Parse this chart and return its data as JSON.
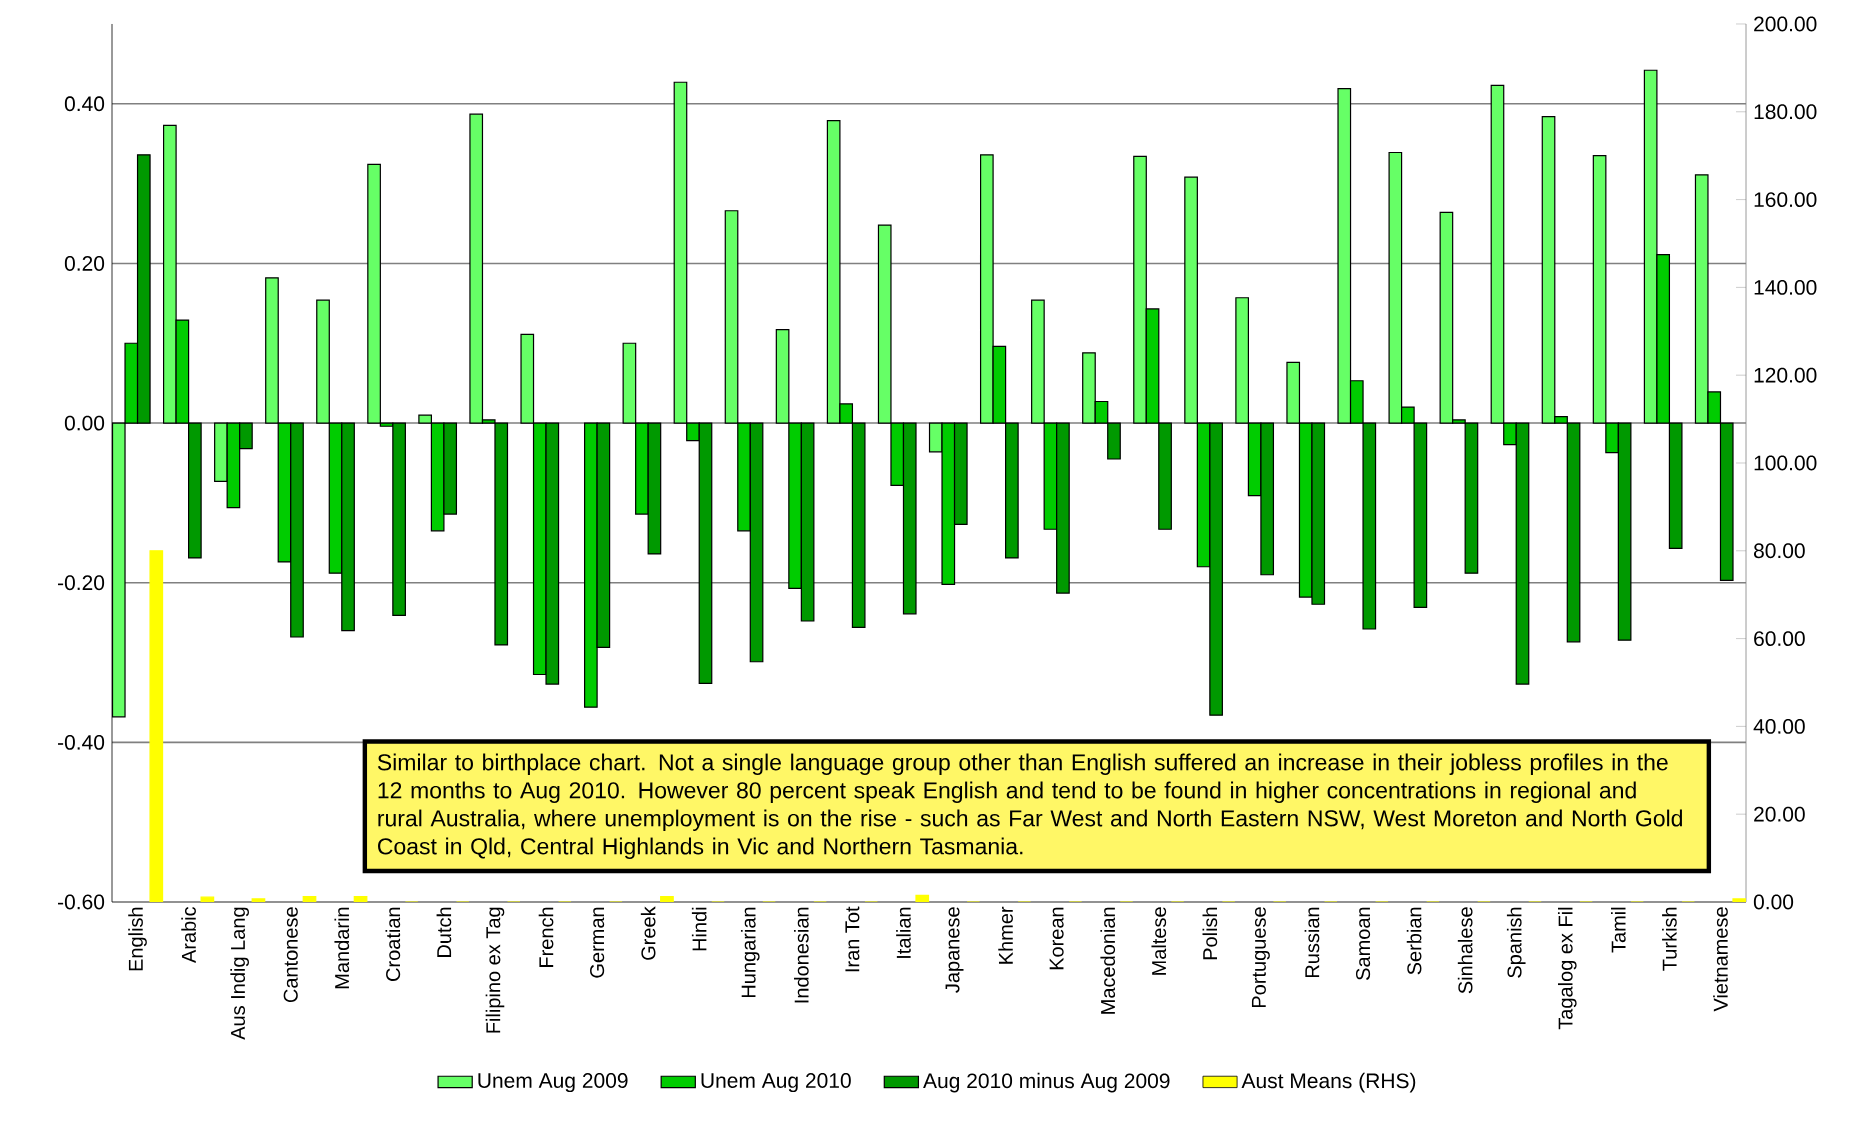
{
  "chart_data": {
    "type": "bar",
    "categories": [
      "English",
      "Arabic",
      "Aus Indig Lang",
      "Cantonese",
      "Mandarin",
      "Croatian",
      "Dutch",
      "Filipino ex Tag",
      "French",
      "German",
      "Greek",
      "Hindi",
      "Hungarian",
      "Indonesian",
      "Iran Tot",
      "Italian",
      "Japanese",
      "Khmer",
      "Korean",
      "Macedonian",
      "Maltese",
      "Polish",
      "Portuguese",
      "Russian",
      "Samoan",
      "Serbian",
      "Sinhalese",
      "Spanish",
      "Tagalog ex Fil",
      "Tamil",
      "Turkish",
      "Vietnamese"
    ],
    "series": [
      {
        "name": "Unem Aug 2009",
        "color": "#66ff66",
        "values": [
          -0.368,
          0.373,
          -0.073,
          0.182,
          0.154,
          0.324,
          0.01,
          0.387,
          0.111,
          null,
          0.1,
          0.427,
          0.266,
          0.117,
          0.379,
          0.248,
          -0.036,
          0.336,
          0.154,
          0.088,
          0.334,
          0.308,
          0.157,
          0.076,
          0.419,
          0.339,
          0.264,
          0.423,
          0.384,
          0.335,
          0.442,
          0.311
        ]
      },
      {
        "name": "Unem Aug 2010",
        "color": "#00cc00",
        "values": [
          0.1,
          0.129,
          -0.106,
          -0.174,
          -0.188,
          -0.004,
          -0.135,
          0.004,
          -0.315,
          -0.356,
          -0.114,
          -0.022,
          -0.135,
          -0.207,
          0.024,
          -0.078,
          -0.202,
          0.096,
          -0.133,
          0.027,
          0.143,
          -0.18,
          -0.091,
          -0.218,
          0.053,
          0.02,
          0.004,
          -0.027,
          0.008,
          -0.037,
          0.211,
          0.039
        ]
      },
      {
        "name": "Aug 2010 minus Aug 2009",
        "color": "#009900",
        "values": [
          0.336,
          -0.169,
          -0.032,
          -0.268,
          -0.26,
          -0.241,
          -0.114,
          -0.278,
          -0.327,
          -0.281,
          -0.164,
          -0.326,
          -0.299,
          -0.248,
          -0.256,
          -0.239,
          -0.127,
          -0.169,
          -0.213,
          -0.045,
          -0.133,
          -0.366,
          -0.19,
          -0.227,
          -0.258,
          -0.231,
          -0.188,
          -0.327,
          -0.274,
          -0.272,
          -0.157,
          -0.197
        ]
      },
      {
        "name": "Aust Means (RHS)",
        "color": "#ffff00",
        "axis": "y2",
        "values": [
          80,
          1.1,
          0.7,
          1.2,
          1.2,
          0,
          0,
          0,
          0,
          0,
          1.2,
          0,
          0,
          0,
          0,
          1.5,
          0,
          0,
          0,
          0,
          0,
          0,
          0,
          0,
          0,
          0,
          0,
          0,
          0,
          0,
          0,
          0.7
        ]
      }
    ],
    "ylim": [
      -0.6,
      0.5
    ],
    "yticks": [
      {
        "value": -0.6,
        "label": "-0.60"
      },
      {
        "value": -0.4,
        "label": "-0.40"
      },
      {
        "value": -0.2,
        "label": "-0.20"
      },
      {
        "value": 0,
        "label": "0.00"
      },
      {
        "value": 0.2,
        "label": "0.20"
      },
      {
        "value": 0.4,
        "label": "0.40"
      }
    ],
    "y2lim": [
      0,
      200
    ],
    "y2ticks": [
      {
        "value": 0,
        "label": "0.00"
      },
      {
        "value": 20,
        "label": "20.00"
      },
      {
        "value": 40,
        "label": "40.00"
      },
      {
        "value": 60,
        "label": "60.00"
      },
      {
        "value": 80,
        "label": "80.00"
      },
      {
        "value": 100,
        "label": "100.00"
      },
      {
        "value": 120,
        "label": "120.00"
      },
      {
        "value": 140,
        "label": "140.00"
      },
      {
        "value": 160,
        "label": "160.00"
      },
      {
        "value": 180,
        "label": "180.00"
      },
      {
        "value": 200,
        "label": "200.00"
      }
    ],
    "grid": "y",
    "legend": "bottom",
    "annotations": [
      "Similar to birthplace chart.  Not a single language group  other than English suffered an increase in their jobless profiles in the 12 months to Aug 2010.   However 80 percent speak English and tend to be found in higher concentrations in regional and rural Australia, where unemployment is on the rise - such as Far West  and North Eastern NSW, West Moreton and North Gold Coast in Qld, Central Highlands in Vic and Northern Tasmania."
    ]
  }
}
